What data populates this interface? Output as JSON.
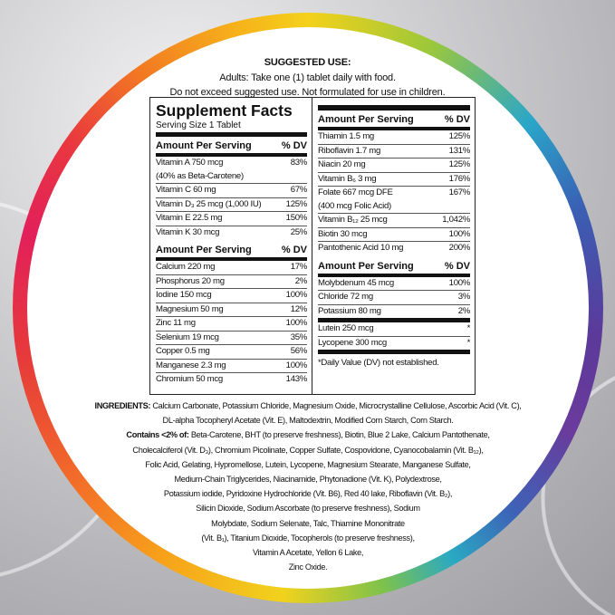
{
  "suggested_use": {
    "heading": "SUGGESTED USE:",
    "lines": [
      "Adults: Take one (1) tablet daily with food.",
      "Do not exceed suggested use. Not formulated for use in children."
    ]
  },
  "facts": {
    "title": "Supplement Facts",
    "serving": "Serving Size 1 Tablet",
    "header": {
      "amount": "Amount Per Serving",
      "dv": "% DV"
    },
    "sections": [
      {
        "rows": [
          [
            "Vitamin A 750 mcg\n  (40% as Beta-Carotene)",
            "83%"
          ],
          [
            "Vitamin C 60 mg",
            "67%"
          ],
          [
            "Vitamin D₃ 25 mcg (1,000 IU)",
            "125%"
          ],
          [
            "Vitamin E 22.5 mg",
            "150%"
          ],
          [
            "Vitamin K 30 mcg",
            "25%"
          ]
        ]
      },
      {
        "rows": [
          [
            "Calcium 220 mg",
            "17%"
          ],
          [
            "Phosphorus 20 mg",
            "2%"
          ],
          [
            "Iodine 150 mcg",
            "100%"
          ],
          [
            "Magnesium 50 mg",
            "12%"
          ],
          [
            "Zinc 11 mg",
            "100%"
          ],
          [
            "Selenium 19 mcg",
            "35%"
          ],
          [
            "Copper 0.5 mg",
            "56%"
          ],
          [
            "Manganese 2.3 mg",
            "100%"
          ],
          [
            "Chromium 50 mcg",
            "143%"
          ]
        ]
      },
      {
        "rows": [
          [
            "Thiamin 1.5 mg",
            "125%"
          ],
          [
            "Riboflavin 1.7 mg",
            "131%"
          ],
          [
            "Niacin 20 mg",
            "125%"
          ],
          [
            "Vitamin B₆ 3 mg",
            "176%"
          ],
          [
            "Folate 667 mcg DFE\n  (400 mcg Folic Acid)",
            "167%"
          ],
          [
            "Vitamin B₁₂ 25 mcg",
            "1,042%"
          ],
          [
            "Biotin 30 mcg",
            "100%"
          ],
          [
            "Pantothenic Acid 10 mg",
            "200%"
          ]
        ]
      },
      {
        "rows": [
          [
            "Molybdenum 45 mcg",
            "100%"
          ],
          [
            "Chloride 72 mg",
            "3%"
          ],
          [
            "Potassium 80 mg",
            "2%"
          ]
        ]
      },
      {
        "rows": [
          [
            "Lutein 250 mcg",
            "*"
          ],
          [
            "Lycopene 300 mcg",
            "*"
          ]
        ]
      }
    ],
    "footnote": "*Daily Value (DV) not established."
  },
  "ingredients": {
    "label": "INGREDIENTS:",
    "line1": "Calcium Carbonate, Potassium Chloride, Magnesium Oxide, Microcrystalline Cellulose, Ascorbic Acid (Vit. C),",
    "line2": "DL-alpha Tocopheryl Acetate (Vit. E), Maltodextrin, Modified Corn Starch, Corn Starch.",
    "contains_label": "Contains <2% of:",
    "line3": "Beta-Carotene, BHT (to preserve freshness), Biotin, Blue 2 Lake, Calcium Pantothenate,",
    "lines": [
      "Cholecalciferol  (Vit. D₃), Chromium Picolinate, Copper Sulfate, Cospovidone, Cyanocobalamin (Vit. B₁₂),",
      "Folic Acid, Gelating, Hypromellose, Lutein, Lycopene, Magnesium Stearate, Manganese Sulfate,",
      "Medium-Chain Triglycerides, Niacinamide, Phytonadione (Vit. K), Polydextrose,",
      "Potassium iodide,  Pyridoxine Hydrochloride (Vit. B6), Red 40 lake, Riboflavin (Vit. B₂),",
      "Silicin Dioxide, Sodium Ascorbate (to preserve freshness), Sodium",
      "Molybdate, Sodium Selenate,  Talc, Thiamine Mononitrate",
      "(Vit. B₁), Titanium Dioxide, Tocopherols (to preserve freshness),",
      "Vitamin A Acetate, Yellon 6 Lake,",
      "Zinc Oxide."
    ]
  }
}
